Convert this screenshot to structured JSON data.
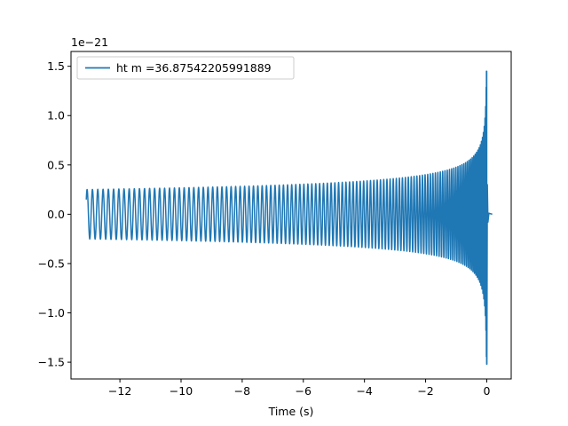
{
  "chart_data": {
    "type": "line",
    "title": "",
    "xlabel": "Time (s)",
    "ylabel": "",
    "y_offset_text": "1e−21",
    "xlim": [
      -13.6,
      0.8
    ],
    "ylim": [
      -1.67,
      1.65
    ],
    "x_ticks": [
      -12,
      -10,
      -8,
      -6,
      -4,
      -2,
      0
    ],
    "x_tick_labels": [
      "−12",
      "−10",
      "−8",
      "−6",
      "−4",
      "−2",
      "0"
    ],
    "y_ticks": [
      -1.5,
      -1.0,
      -0.5,
      0.0,
      0.5,
      1.0,
      1.5
    ],
    "y_tick_labels": [
      "−1.5",
      "−1.0",
      "−0.5",
      "0.0",
      "0.5",
      "1.0",
      "1.5"
    ],
    "legend_position": "upper-left",
    "grid": false,
    "series": [
      {
        "name": "ht m =36.87542205991889",
        "color": "#1f77b4",
        "t_start": -13.1,
        "t_merger": 0.0,
        "t_end": 0.18,
        "initial_amplitude": 0.25,
        "peak_amplitude": 1.45,
        "min_amplitude": -1.52,
        "cycles_visible": 120
      }
    ]
  }
}
